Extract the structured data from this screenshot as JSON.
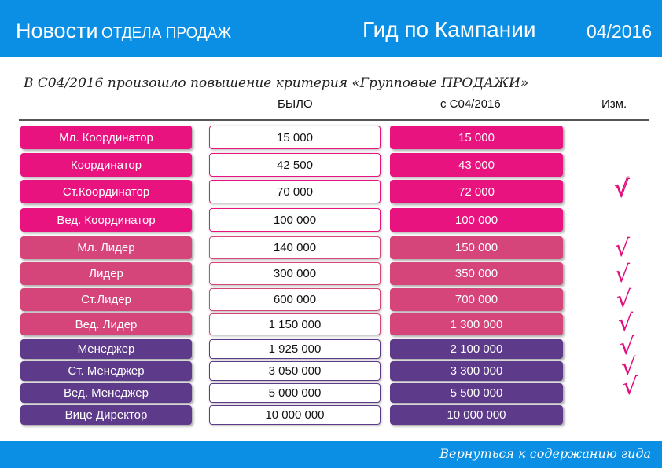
{
  "header": {
    "title_main": "Новости",
    "title_sub": "ОТДЕЛА ПРОДАЖ",
    "center_title": "Гид по Кампании",
    "date": "04/2016"
  },
  "subtitle": "В С04/2016 произошло повышение критерия «Групповые ПРОДАЖИ»",
  "columns": {
    "was": "БЫЛО",
    "new": "с С04/2016",
    "change": "Изм."
  },
  "colors": {
    "header_bg": "#0a8fe4",
    "group1": "#e8137f",
    "group2": "#d5457a",
    "group3": "#5e3b8a",
    "check": "#e0117f"
  },
  "rows": [
    {
      "name": "Мл. Координатор",
      "was": "15 000",
      "now": "15 000",
      "changed": false
    },
    {
      "name": "Координатор",
      "was": "42 500",
      "now": "43 000",
      "changed": true
    },
    {
      "name": "Ст.Координатор",
      "was": "70 000",
      "now": "72 000",
      "changed": true
    },
    {
      "name": "Вед. Координатор",
      "was": "100 000",
      "now": "100 000",
      "changed": false
    },
    {
      "name": "Мл. Лидер",
      "was": "140 000",
      "now": "150 000",
      "changed": true
    },
    {
      "name": "Лидер",
      "was": "300 000",
      "now": "350 000",
      "changed": true
    },
    {
      "name": "Ст.Лидер",
      "was": "600 000",
      "now": "700 000",
      "changed": true
    },
    {
      "name": "Вед. Лидер",
      "was": "1 150 000",
      "now": "1 300 000",
      "changed": true
    },
    {
      "name": "Менеджер",
      "was": "1 925 000",
      "now": "2 100 000",
      "changed": true
    },
    {
      "name": "Ст. Менеджер",
      "was": "3 050 000",
      "now": "3 300 000",
      "changed": true
    },
    {
      "name": "Вед. Менеджер",
      "was": "5 000 000",
      "now": "5 500 000",
      "changed": true
    },
    {
      "name": "Вице Директор",
      "was": "10 000 000",
      "now": "10 000 000",
      "changed": false
    }
  ],
  "check_mark": "√",
  "footer": {
    "back_link": "Вернуться к содержанию гида"
  }
}
